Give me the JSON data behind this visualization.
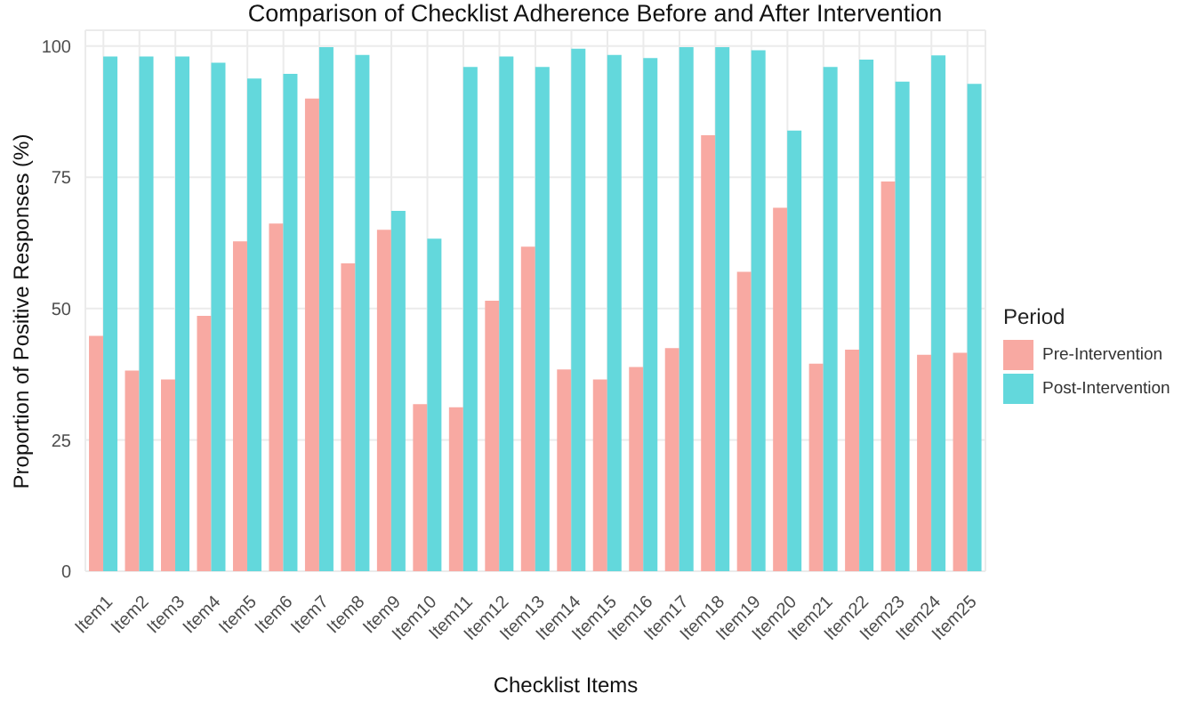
{
  "chart_data": {
    "type": "bar",
    "title": "Comparison of Checklist Adherence Before and After Intervention",
    "xlabel": "Checklist Items",
    "ylabel": "Proportion of Positive Responses (%)",
    "legend_title": "Period",
    "categories": [
      "Item1",
      "Item2",
      "Item3",
      "Item4",
      "Item5",
      "Item6",
      "Item7",
      "Item8",
      "Item9",
      "Item10",
      "Item11",
      "Item12",
      "Item13",
      "Item14",
      "Item15",
      "Item16",
      "Item17",
      "Item18",
      "Item19",
      "Item20",
      "Item21",
      "Item22",
      "Item23",
      "Item24",
      "Item25"
    ],
    "series": [
      {
        "name": "Pre-Intervention",
        "color": "#f8a9a2",
        "values": [
          44.8,
          38.2,
          36.5,
          48.6,
          62.8,
          66.2,
          90,
          58.6,
          65,
          31.8,
          31.2,
          51.5,
          61.8,
          38.4,
          36.5,
          38.9,
          42.5,
          83,
          57,
          69.2,
          39.5,
          42.2,
          74.2,
          41.2,
          41.6
        ]
      },
      {
        "name": "Post-Intervention",
        "color": "#63d8dc",
        "values": [
          98,
          98,
          98,
          96.8,
          93.8,
          94.7,
          99.8,
          98.3,
          68.6,
          63.3,
          96,
          98,
          96,
          99.5,
          98.3,
          97.7,
          99.8,
          99.8,
          99.2,
          83.9,
          96,
          97.4,
          93.2,
          98.2,
          92.8
        ]
      }
    ],
    "ylim": [
      0,
      103
    ],
    "yticks": [
      0,
      25,
      50,
      75,
      100
    ],
    "grid": true,
    "legend": "right"
  }
}
